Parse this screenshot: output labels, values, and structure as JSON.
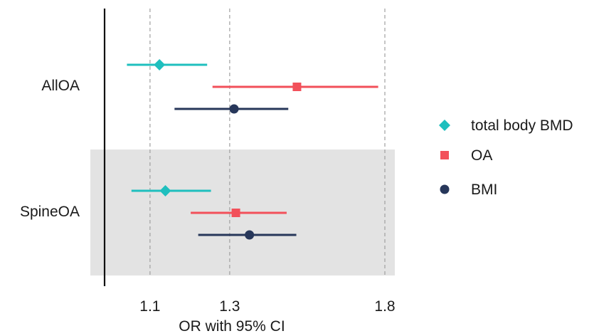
{
  "chart_data": {
    "type": "forest",
    "xlabel": "OR with 95% CI",
    "x_scale": "log",
    "xlim": [
      0.985,
      1.835
    ],
    "x_ticks": [
      1.1,
      1.3,
      1.8
    ],
    "x_tick_labels": [
      "1.1",
      "1.3",
      "1.8"
    ],
    "reference_line": 1.0,
    "grid": "vertical dashed at ticks",
    "legend_position": "right",
    "categories": [
      "AllOA",
      "SpineOA"
    ],
    "shaded_category": "SpineOA",
    "series": [
      {
        "name": "total body BMD",
        "color": "#1fbfbe",
        "marker": "diamond",
        "points": [
          {
            "category": "AllOA",
            "or": 1.122,
            "lower": 1.048,
            "upper": 1.24
          },
          {
            "category": "SpineOA",
            "or": 1.136,
            "lower": 1.058,
            "upper": 1.25
          }
        ]
      },
      {
        "name": "OA",
        "color": "#f2505a",
        "marker": "square",
        "points": [
          {
            "category": "AllOA",
            "or": 1.497,
            "lower": 1.254,
            "upper": 1.775
          },
          {
            "category": "SpineOA",
            "or": 1.317,
            "lower": 1.198,
            "upper": 1.465
          }
        ]
      },
      {
        "name": "BMI",
        "color": "#27375a",
        "marker": "circle",
        "points": [
          {
            "category": "AllOA",
            "or": 1.312,
            "lower": 1.158,
            "upper": 1.47
          },
          {
            "category": "SpineOA",
            "or": 1.355,
            "lower": 1.217,
            "upper": 1.495
          }
        ]
      }
    ]
  }
}
